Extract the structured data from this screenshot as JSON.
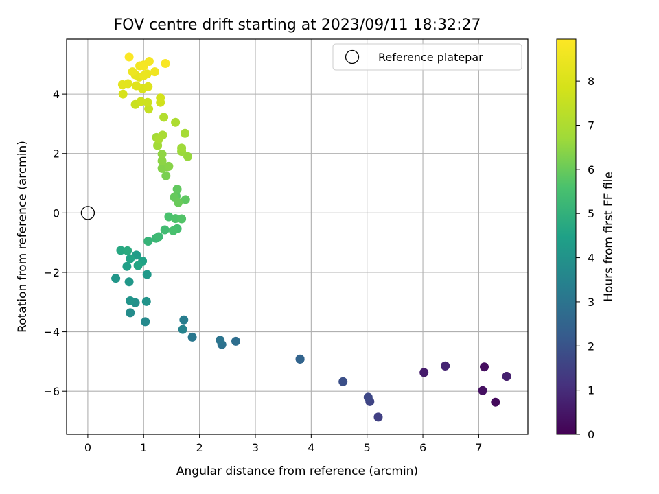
{
  "chart_data": {
    "type": "scatter",
    "title": "FOV centre drift starting at 2023/09/11 18:32:27",
    "xlabel": "Angular distance from reference (arcmin)",
    "ylabel": "Rotation from reference (arcmin)",
    "xlim": [
      -0.38,
      7.88
    ],
    "ylim": [
      -7.45,
      5.85
    ],
    "x_ticks": [
      0,
      1,
      2,
      3,
      4,
      5,
      6,
      7
    ],
    "y_ticks": [
      -6,
      -4,
      -2,
      0,
      2,
      4
    ],
    "grid": true,
    "legend": {
      "placement": "top-right",
      "entries": [
        "Reference platepar"
      ]
    },
    "reference_point": {
      "x": 0,
      "y": 0,
      "label": "Reference platepar"
    },
    "colorbar": {
      "label": "Hours from first FF file",
      "colormap": "viridis",
      "range": [
        0,
        8.95
      ],
      "ticks": [
        0,
        1,
        2,
        3,
        4,
        5,
        6,
        7,
        8
      ]
    },
    "series": [
      {
        "x": [
          7.5,
          7.3,
          7.1,
          7.07,
          6.4,
          6.02,
          7.5,
          6.4,
          5.2,
          5.05,
          5.02,
          4.57,
          3.8,
          3.8,
          2.65,
          2.4,
          2.37,
          1.87,
          1.72,
          1.7,
          1.03,
          0.76,
          0.85,
          1.05,
          0.76,
          0.5,
          0.74,
          1.06,
          0.87,
          0.7,
          0.98,
          0.76,
          0.9,
          0.59,
          0.71,
          1.08,
          1.22,
          1.27,
          1.38,
          1.6,
          1.53,
          1.45,
          1.57,
          1.68,
          1.58,
          1.75,
          1.6,
          1.55,
          1.62,
          1.4,
          1.42,
          1.33,
          1.45,
          1.33,
          1.33,
          1.79,
          1.68,
          1.68,
          1.25,
          1.23,
          1.74,
          1.34,
          1.27,
          1.57,
          1.36,
          1.09,
          0.85,
          1.07,
          0.95,
          1.3,
          1.3,
          0.63,
          0.98,
          1.08,
          0.87,
          0.72,
          0.62,
          0.92,
          0.85,
          1.06,
          1.0,
          0.8,
          1.0,
          1.2,
          0.93,
          1.1,
          1.0,
          1.39,
          0.74
        ],
        "y": [
          -5.5,
          -6.37,
          -5.18,
          -5.98,
          -5.15,
          -5.37,
          -5.5,
          -5.15,
          -6.87,
          -6.35,
          -6.2,
          -5.68,
          -4.92,
          -4.92,
          -4.32,
          -4.43,
          -4.28,
          -4.18,
          -3.6,
          -3.92,
          -3.66,
          -3.36,
          -3.02,
          -2.98,
          -2.96,
          -2.2,
          -2.32,
          -2.07,
          -1.42,
          -1.8,
          -1.62,
          -1.54,
          -1.77,
          -1.26,
          -1.27,
          -0.95,
          -0.85,
          -0.8,
          -0.57,
          -0.53,
          -0.6,
          -0.13,
          -0.19,
          -0.2,
          0.57,
          0.45,
          0.8,
          0.53,
          0.35,
          1.25,
          1.55,
          1.5,
          1.57,
          1.75,
          1.98,
          1.9,
          2.07,
          2.18,
          2.27,
          2.54,
          2.68,
          2.62,
          2.48,
          3.05,
          3.22,
          3.5,
          3.65,
          3.72,
          3.75,
          3.72,
          3.87,
          4.0,
          4.18,
          4.25,
          4.28,
          4.35,
          4.32,
          4.57,
          4.65,
          4.68,
          4.62,
          4.75,
          4.98,
          4.75,
          4.95,
          5.1,
          4.95,
          5.03,
          5.25
        ],
        "hours": [
          0.1,
          0.2,
          0.3,
          0.35,
          0.5,
          0.6,
          0.7,
          0.8,
          1.5,
          1.6,
          1.7,
          1.9,
          2.4,
          2.5,
          2.8,
          2.9,
          3.0,
          3.1,
          3.3,
          3.5,
          3.7,
          3.8,
          3.9,
          4.0,
          4.05,
          4.1,
          4.15,
          4.2,
          4.3,
          4.4,
          4.5,
          4.55,
          4.6,
          4.7,
          4.8,
          5.1,
          5.2,
          5.3,
          5.4,
          5.5,
          5.55,
          5.6,
          5.65,
          5.7,
          5.8,
          5.85,
          5.9,
          5.95,
          6.0,
          6.2,
          6.3,
          6.35,
          6.4,
          6.45,
          6.5,
          6.6,
          6.65,
          6.7,
          6.75,
          6.8,
          6.85,
          6.9,
          6.95,
          7.0,
          7.1,
          7.5,
          7.6,
          7.65,
          7.7,
          7.75,
          7.8,
          7.9,
          8.0,
          8.1,
          8.15,
          8.2,
          8.25,
          8.3,
          8.35,
          8.4,
          8.45,
          8.5,
          8.55,
          8.6,
          8.65,
          8.7,
          8.75,
          8.8,
          8.9
        ]
      }
    ]
  }
}
